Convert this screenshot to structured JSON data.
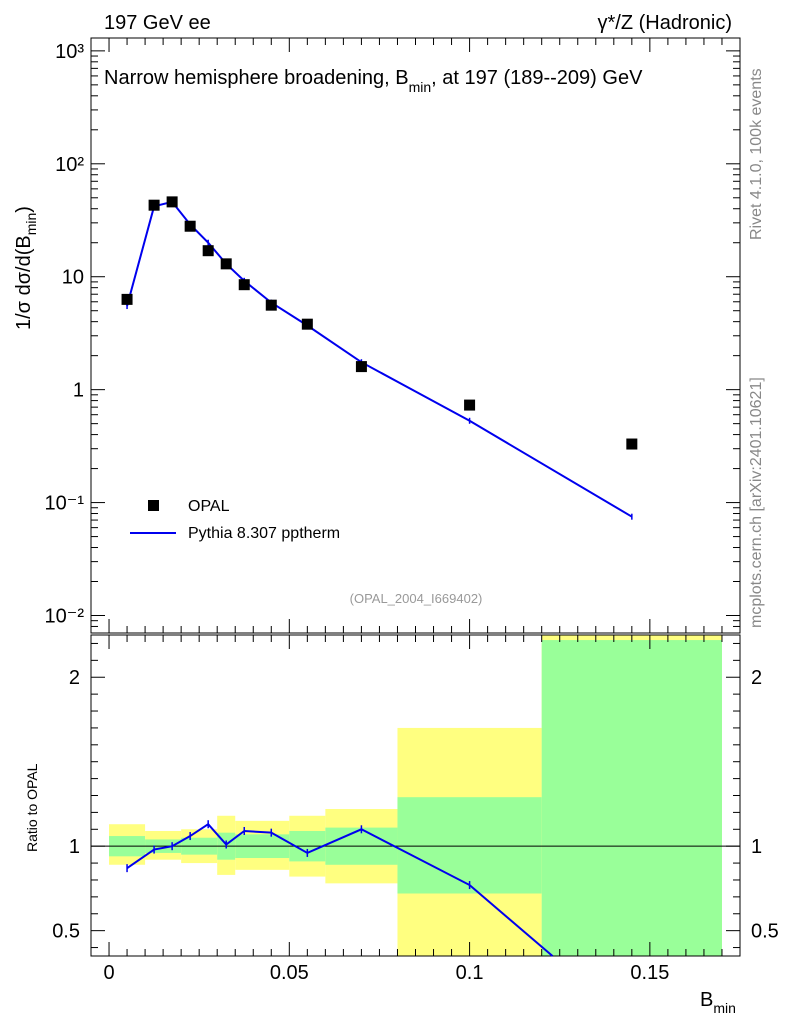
{
  "header": {
    "left": "197 GeV ee",
    "right": "γ*/Z (Hadronic)"
  },
  "side": {
    "rivet": "Rivet 4.1.0,  100k events",
    "mcplots": "mcplots.cern.ch [arXiv:2401.10621]"
  },
  "chart_data": [
    {
      "type": "scatter",
      "panel": "main",
      "title": "Narrow hemisphere broadening, B_min, at 197 (189--209) GeV",
      "title_main": "Narrow hemisphere broadening, B",
      "title_sub": "min",
      "title_tail": ", at 197 (189--209) GeV",
      "ylabel": "1/σ  dσ/d(B_min)",
      "yscale": "log",
      "ylim": [
        0.007,
        1300
      ],
      "xlim": [
        -0.005,
        0.175
      ],
      "ytick_labels": [
        "10⁻²",
        "10⁻¹",
        "1",
        "10",
        "10²",
        "10³"
      ],
      "ytick_values": [
        0.01,
        0.1,
        1,
        10,
        100,
        1000
      ],
      "watermark": "(OPAL_2004_I669402)",
      "legend_position": "bottom-left",
      "series": [
        {
          "name": "OPAL",
          "style": "markers",
          "color": "#000000",
          "x": [
            0.005,
            0.0125,
            0.0175,
            0.0225,
            0.0275,
            0.0325,
            0.0375,
            0.045,
            0.055,
            0.07,
            0.1,
            0.145
          ],
          "y": [
            6.3,
            43,
            46,
            28,
            17,
            13,
            8.5,
            5.6,
            3.8,
            1.6,
            0.73,
            0.33
          ]
        },
        {
          "name": "Pythia 8.307 pptherm",
          "style": "line",
          "color": "#0000ee",
          "x": [
            0.005,
            0.0125,
            0.0175,
            0.0225,
            0.0275,
            0.0325,
            0.0375,
            0.045,
            0.055,
            0.07,
            0.1,
            0.145
          ],
          "y": [
            5.5,
            42,
            46,
            29,
            20,
            13,
            9.2,
            5.9,
            3.7,
            1.75,
            0.53,
            0.075
          ]
        }
      ]
    },
    {
      "type": "line",
      "panel": "ratio",
      "xlabel": "B_min",
      "xlabel_main": "B",
      "xlabel_sub": "min",
      "ylabel": "Ratio to OPAL",
      "ylim": [
        0.35,
        2.25
      ],
      "xlim": [
        -0.005,
        0.175
      ],
      "ytick_values": [
        0.5,
        1,
        2
      ],
      "ytick_labels": [
        "0.5",
        "1",
        "2"
      ],
      "xtick_values": [
        0,
        0.05,
        0.1,
        0.15
      ],
      "xtick_labels": [
        "0",
        "0.05",
        "0.1",
        "0.15"
      ],
      "bands": [
        {
          "x0": 0.0,
          "x1": 0.01,
          "yellow": [
            0.89,
            1.13
          ],
          "green": [
            0.94,
            1.06
          ]
        },
        {
          "x0": 0.01,
          "x1": 0.02,
          "yellow": [
            0.92,
            1.09
          ],
          "green": [
            0.96,
            1.04
          ]
        },
        {
          "x0": 0.02,
          "x1": 0.03,
          "yellow": [
            0.9,
            1.1
          ],
          "green": [
            0.95,
            1.05
          ]
        },
        {
          "x0": 0.03,
          "x1": 0.035,
          "yellow": [
            0.83,
            1.18
          ],
          "green": [
            0.92,
            1.08
          ]
        },
        {
          "x0": 0.035,
          "x1": 0.05,
          "yellow": [
            0.86,
            1.15
          ],
          "green": [
            0.93,
            1.07
          ]
        },
        {
          "x0": 0.05,
          "x1": 0.06,
          "yellow": [
            0.82,
            1.18
          ],
          "green": [
            0.91,
            1.09
          ]
        },
        {
          "x0": 0.06,
          "x1": 0.08,
          "yellow": [
            0.78,
            1.22
          ],
          "green": [
            0.89,
            1.11
          ]
        },
        {
          "x0": 0.08,
          "x1": 0.12,
          "yellow": [
            0.3,
            1.7
          ],
          "green": [
            0.72,
            1.29
          ]
        },
        {
          "x0": 0.12,
          "x1": 0.17,
          "yellow": [
            0.3,
            2.35
          ],
          "green": [
            0.3,
            2.22
          ]
        }
      ],
      "series": [
        {
          "name": "Pythia 8.307 pptherm / OPAL",
          "color": "#0000ee",
          "x": [
            0.005,
            0.0125,
            0.0175,
            0.0225,
            0.0275,
            0.0325,
            0.0375,
            0.045,
            0.055,
            0.07,
            0.1,
            0.123
          ],
          "y": [
            0.87,
            0.98,
            1.0,
            1.06,
            1.13,
            1.01,
            1.09,
            1.08,
            0.96,
            1.1,
            0.77,
            0.35
          ]
        }
      ]
    }
  ]
}
